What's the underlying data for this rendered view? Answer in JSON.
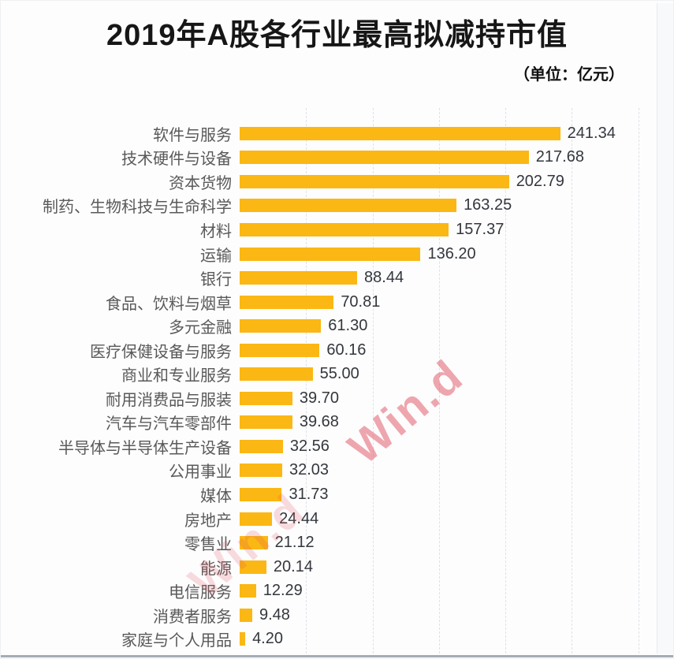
{
  "header": {
    "title": "2019年A股各行业最高拟减持市值",
    "unit_label": "（单位：亿元）"
  },
  "watermark": {
    "text": "Win.d",
    "color": "#e05260"
  },
  "chart_data": {
    "type": "bar",
    "orientation": "horizontal",
    "title": "2019年A股各行业最高拟减持市值",
    "unit": "亿元",
    "categories": [
      "软件与服务",
      "技术硬件与设备",
      "资本货物",
      "制药、生物科技与生命科学",
      "材料",
      "运输",
      "银行",
      "食品、饮料与烟草",
      "多元金融",
      "医疗保健设备与服务",
      "商业和专业服务",
      "耐用消费品与服装",
      "汽车与汽车零部件",
      "半导体与半导体生产设备",
      "公用事业",
      "媒体",
      "房地产",
      "零售业",
      "能源",
      "电信服务",
      "消费者服务",
      "家庭与个人用品"
    ],
    "values": [
      241.34,
      217.68,
      202.79,
      163.25,
      157.37,
      136.2,
      88.44,
      70.81,
      61.3,
      60.16,
      55.0,
      39.7,
      39.68,
      32.56,
      32.03,
      31.73,
      24.44,
      21.12,
      20.14,
      12.29,
      9.48,
      4.2
    ],
    "value_decimals": 2,
    "xlim": [
      0,
      320
    ],
    "grid": true,
    "grid_interval": 50,
    "legend": "none",
    "bar_color": "#fbb713",
    "label_color": "#595959",
    "value_color": "#33373c"
  }
}
